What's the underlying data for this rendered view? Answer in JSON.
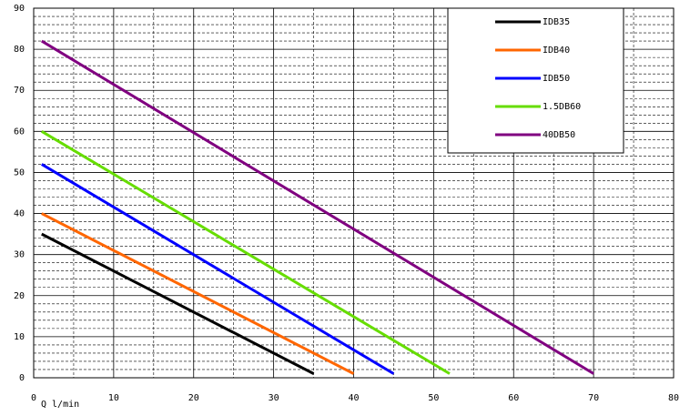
{
  "chart_data": {
    "type": "line",
    "x_label": "Q l/min",
    "xlim": [
      0,
      80
    ],
    "xticks": [
      0,
      10,
      20,
      30,
      40,
      50,
      60,
      70,
      80
    ],
    "ylim": [
      0,
      90
    ],
    "yticks": [
      0,
      10,
      20,
      30,
      40,
      50,
      60,
      70,
      80,
      90
    ],
    "grid": true,
    "legend": "upper right",
    "series": [
      {
        "name": "IDB35",
        "color": "#000000",
        "x": [
          1,
          35
        ],
        "values": [
          35,
          1
        ]
      },
      {
        "name": "IDB40",
        "color": "#ff6600",
        "x": [
          1,
          40
        ],
        "values": [
          40,
          1
        ]
      },
      {
        "name": "IDB50",
        "color": "#0000ff",
        "x": [
          1,
          45
        ],
        "values": [
          52,
          1
        ]
      },
      {
        "name": "1.5DB60",
        "color": "#66dd00",
        "x": [
          1,
          52
        ],
        "values": [
          60,
          1
        ]
      },
      {
        "name": "40DB50",
        "color": "#800080",
        "x": [
          1,
          70
        ],
        "values": [
          82,
          1
        ]
      }
    ]
  }
}
